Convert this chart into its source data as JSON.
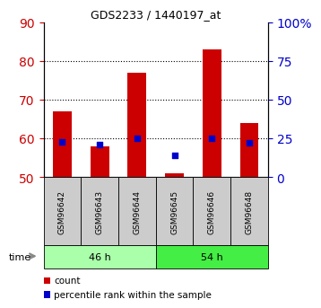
{
  "title": "GDS2233 / 1440197_at",
  "samples": [
    "GSM96642",
    "GSM96643",
    "GSM96644",
    "GSM96645",
    "GSM96646",
    "GSM96648"
  ],
  "count_values": [
    67,
    58,
    77,
    51,
    83,
    64
  ],
  "percentile_values": [
    23,
    21,
    25,
    14,
    25,
    22
  ],
  "count_base": 50,
  "ylim_left": [
    50,
    90
  ],
  "ylim_right": [
    0,
    100
  ],
  "yticks_left": [
    50,
    60,
    70,
    80,
    90
  ],
  "yticks_right": [
    0,
    25,
    50,
    75,
    100
  ],
  "group_46h_color": "#aaffaa",
  "group_54h_color": "#44ee44",
  "bar_color": "#cc0000",
  "dot_color": "#0000cc",
  "bar_width": 0.5,
  "tick_label_color_left": "#cc0000",
  "tick_label_color_right": "#0000cc",
  "xlabel_box_color": "#cccccc",
  "legend_count": "count",
  "legend_pct": "percentile rank within the sample",
  "time_label": "time"
}
